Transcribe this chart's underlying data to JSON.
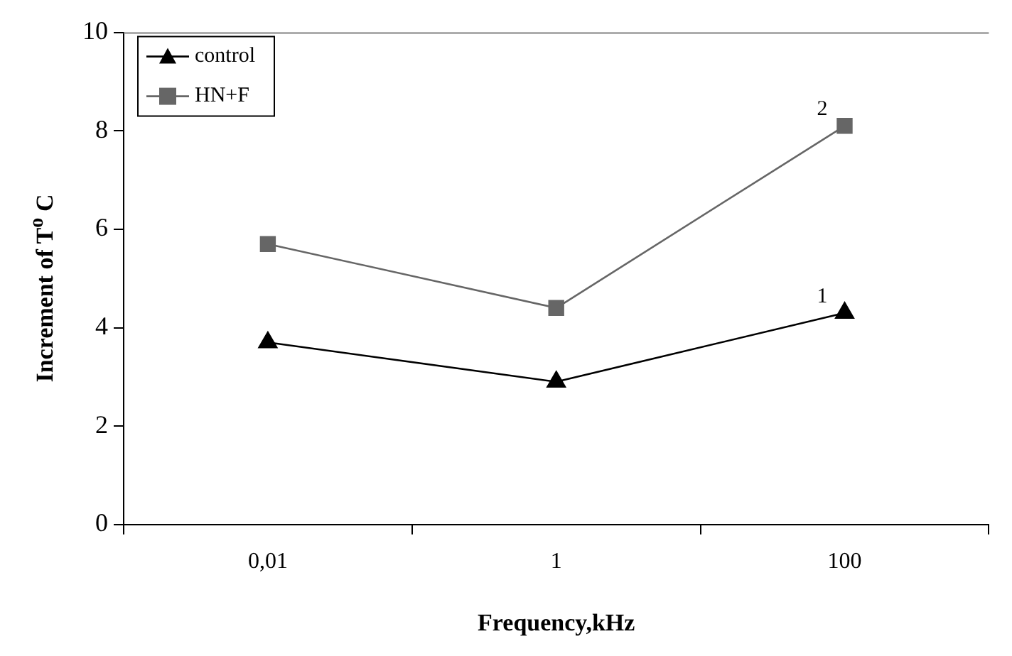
{
  "chart_data": {
    "type": "line",
    "xlabel": "Frequency,kHz",
    "ylabel": "Increment of T$^{o}$ C",
    "categories": [
      "0,01",
      "1",
      "100"
    ],
    "series": [
      {
        "name": "control",
        "color": "#000000",
        "marker": "triangle",
        "values": [
          3.7,
          2.9,
          4.3
        ]
      },
      {
        "name": "HN+F",
        "color": "#666666",
        "marker": "square",
        "values": [
          5.7,
          4.4,
          8.1
        ]
      }
    ],
    "ylim": [
      0,
      10
    ],
    "yticks": [
      0,
      2,
      4,
      6,
      8,
      10
    ],
    "grid": false,
    "legend": "top left",
    "annotations": [
      {
        "text": "1",
        "x": "100",
        "y": 4.3
      },
      {
        "text": "2",
        "x": "100",
        "y": 8.1
      }
    ]
  }
}
